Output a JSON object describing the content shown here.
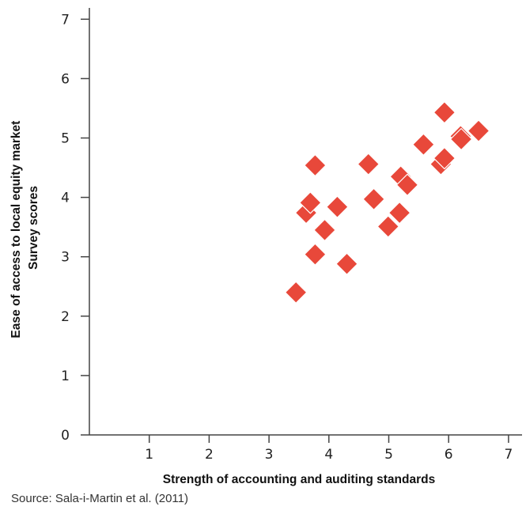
{
  "chart_data": {
    "type": "scatter",
    "title": "",
    "xlabel": "Strength of accounting and auditing standards",
    "ylabel_lines": [
      "Ease of access to local equity market",
      "Survey scores"
    ],
    "xlim": [
      0,
      7
    ],
    "ylim": [
      0,
      7
    ],
    "xticks": [
      "1",
      "2",
      "3",
      "4",
      "5",
      "6",
      "7"
    ],
    "yticks": [
      "0",
      "1",
      "2",
      "3",
      "4",
      "5",
      "6",
      "7"
    ],
    "marker_color": "#e8483a",
    "marker_shape": "diamond",
    "grid": false,
    "points": [
      {
        "x": 3.45,
        "y": 2.4
      },
      {
        "x": 3.62,
        "y": 3.74
      },
      {
        "x": 3.69,
        "y": 3.91
      },
      {
        "x": 3.77,
        "y": 3.04
      },
      {
        "x": 3.77,
        "y": 4.54
      },
      {
        "x": 3.93,
        "y": 3.45
      },
      {
        "x": 4.14,
        "y": 3.84
      },
      {
        "x": 4.3,
        "y": 2.88
      },
      {
        "x": 4.66,
        "y": 4.56
      },
      {
        "x": 4.75,
        "y": 3.97
      },
      {
        "x": 4.99,
        "y": 3.51
      },
      {
        "x": 5.18,
        "y": 3.74
      },
      {
        "x": 5.2,
        "y": 4.35
      },
      {
        "x": 5.31,
        "y": 4.21
      },
      {
        "x": 5.58,
        "y": 4.89
      },
      {
        "x": 5.87,
        "y": 4.56
      },
      {
        "x": 5.93,
        "y": 4.66
      },
      {
        "x": 5.93,
        "y": 5.43
      },
      {
        "x": 6.2,
        "y": 5.03
      },
      {
        "x": 6.21,
        "y": 4.98
      },
      {
        "x": 6.5,
        "y": 5.12
      }
    ]
  },
  "source_text": "Source: Sala-i-Martin et al. (2011)"
}
